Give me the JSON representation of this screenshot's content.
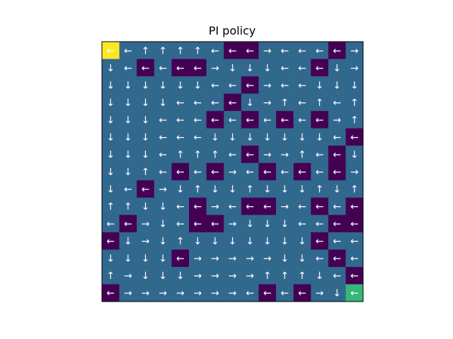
{
  "chart_data": {
    "type": "heatmap",
    "title": "PI policy",
    "xlabel": "",
    "ylabel": "",
    "grid": false,
    "rows": 15,
    "cols": 15,
    "palette": {
      "0": "#440154",
      "1": "#31688e",
      "2": "#35b779",
      "3": "#fde725"
    },
    "cell_values": [
      [
        3,
        1,
        1,
        1,
        1,
        1,
        1,
        0,
        0,
        1,
        1,
        1,
        1,
        0,
        1
      ],
      [
        1,
        1,
        0,
        1,
        0,
        0,
        1,
        1,
        1,
        1,
        1,
        1,
        0,
        1,
        1
      ],
      [
        1,
        1,
        1,
        1,
        1,
        1,
        1,
        1,
        0,
        1,
        1,
        1,
        1,
        1,
        1
      ],
      [
        1,
        1,
        1,
        1,
        1,
        1,
        1,
        0,
        1,
        1,
        1,
        1,
        1,
        1,
        1
      ],
      [
        1,
        1,
        1,
        1,
        1,
        1,
        0,
        1,
        0,
        1,
        0,
        1,
        0,
        1,
        1
      ],
      [
        1,
        1,
        1,
        1,
        1,
        1,
        1,
        1,
        1,
        1,
        1,
        1,
        1,
        1,
        0
      ],
      [
        1,
        1,
        1,
        1,
        1,
        1,
        1,
        1,
        0,
        1,
        1,
        1,
        1,
        0,
        1
      ],
      [
        1,
        1,
        1,
        1,
        0,
        1,
        0,
        1,
        1,
        0,
        1,
        0,
        1,
        0,
        1
      ],
      [
        1,
        1,
        0,
        1,
        1,
        1,
        1,
        1,
        1,
        1,
        1,
        1,
        1,
        1,
        1
      ],
      [
        1,
        1,
        1,
        1,
        1,
        0,
        1,
        1,
        0,
        0,
        1,
        1,
        0,
        1,
        0
      ],
      [
        1,
        0,
        1,
        1,
        1,
        0,
        0,
        1,
        1,
        1,
        1,
        1,
        1,
        0,
        0
      ],
      [
        0,
        1,
        1,
        1,
        1,
        1,
        1,
        1,
        1,
        1,
        1,
        1,
        0,
        1,
        1
      ],
      [
        1,
        1,
        1,
        1,
        0,
        1,
        1,
        1,
        1,
        1,
        1,
        1,
        1,
        0,
        1
      ],
      [
        1,
        1,
        1,
        1,
        1,
        1,
        1,
        1,
        1,
        1,
        1,
        1,
        1,
        1,
        0
      ],
      [
        0,
        1,
        1,
        1,
        1,
        1,
        1,
        1,
        1,
        0,
        1,
        0,
        1,
        1,
        2
      ]
    ],
    "arrows": [
      [
        "←",
        "←",
        "↑",
        "↑",
        "↑",
        "↑",
        "←",
        "←",
        "←",
        "→",
        "←",
        "←",
        "←",
        "←",
        "→"
      ],
      [
        "↓",
        "←",
        "←",
        "←",
        "←",
        "←",
        "→",
        "↓",
        "↓",
        "↓",
        "←",
        "←",
        "←",
        "↓",
        "→"
      ],
      [
        "↓",
        "↓",
        "↓",
        "↓",
        "↓",
        "↓",
        "←",
        "←",
        "←",
        "→",
        "←",
        "←",
        "↓",
        "↓",
        "↓"
      ],
      [
        "↓",
        "↓",
        "↓",
        "↓",
        "←",
        "←",
        "←",
        "←",
        "↓",
        "→",
        "↑",
        "←",
        "↑",
        "←",
        "↑"
      ],
      [
        "↓",
        "↓",
        "↓",
        "←",
        "←",
        "←",
        "←",
        "←",
        "←",
        "←",
        "←",
        "←",
        "←",
        "→",
        "↑"
      ],
      [
        "↓",
        "↓",
        "↓",
        "←",
        "←",
        "←",
        "↓",
        "↓",
        "↓",
        "↓",
        "↓",
        "↓",
        "↓",
        "←",
        "←"
      ],
      [
        "↓",
        "↓",
        "↓",
        "←",
        "↑",
        "↑",
        "↑",
        "←",
        "←",
        "→",
        "→",
        "↑",
        "←",
        "←",
        "↓"
      ],
      [
        "↓",
        "↓",
        "↑",
        "←",
        "←",
        "←",
        "←",
        "→",
        "←",
        "←",
        "←",
        "←",
        "←",
        "←",
        "→"
      ],
      [
        "↓",
        "←",
        "←",
        "→",
        "↓",
        "↑",
        "↓",
        "↓",
        "↑",
        "↓",
        "↓",
        "↓",
        "↑",
        "↓",
        "↑"
      ],
      [
        "↑",
        "↑",
        "↓",
        "↓",
        "←",
        "←",
        "→",
        "←",
        "←",
        "←",
        "→",
        "←",
        "←",
        "←",
        "←"
      ],
      [
        "←",
        "←",
        "→",
        "↓",
        "←",
        "←",
        "←",
        "→",
        "↓",
        "↓",
        "↓",
        "←",
        "←",
        "←",
        "←"
      ],
      [
        "←",
        "↓",
        "→",
        "↓",
        "↑",
        "↓",
        "↓",
        "↓",
        "↓",
        "↓",
        "↓",
        "↓",
        "←",
        "←",
        "←"
      ],
      [
        "↓",
        "↓",
        "↓",
        "↓",
        "←",
        "→",
        "→",
        "→",
        "→",
        "→",
        "↓",
        "↓",
        "←",
        "←",
        "←"
      ],
      [
        "↑",
        "→",
        "↓",
        "↓",
        "↓",
        "→",
        "→",
        "→",
        "→",
        "↑",
        "↑",
        "↑",
        "↓",
        "←",
        "←"
      ],
      [
        "←",
        "→",
        "→",
        "→",
        "→",
        "→",
        "→",
        "→",
        "←",
        "←",
        "←",
        "←",
        "→",
        "↓",
        "←"
      ]
    ]
  }
}
